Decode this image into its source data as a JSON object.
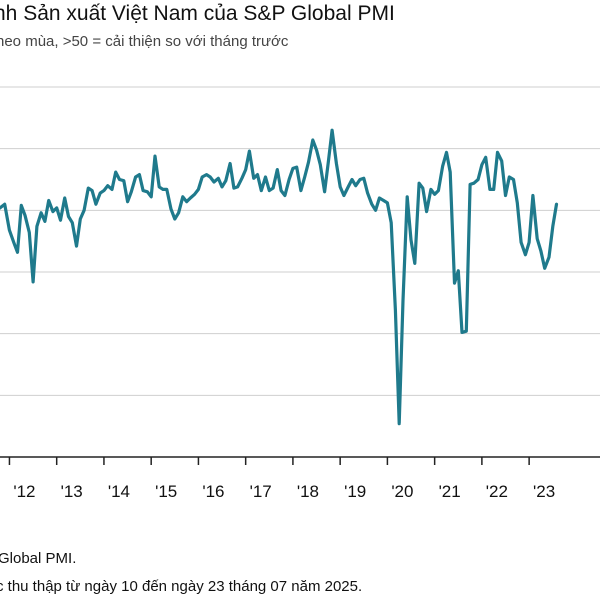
{
  "title": "nh Sản xuất Việt Nam của S&P Global PMI",
  "subtitle": "heo mùa, >50 = cải thiện so với tháng trước",
  "source_line1": "Global PMI.",
  "source_line2": "c thu thập từ ngày 10 đến ngày 23 tháng 07 năm 2025.",
  "colors": {
    "line": "#1f7a8c",
    "grid": "#cfcfcf",
    "axis": "#222222"
  },
  "chart_data": {
    "type": "line",
    "title": "nh Sản xuất Việt Nam của S&P Global PMI",
    "subtitle": "heo mùa, >50 = cải thiện so với tháng trước",
    "xlabel": "",
    "ylabel": "",
    "xlim": [
      2011.8,
      2024.5
    ],
    "ylim": [
      30,
      60
    ],
    "grid": true,
    "x_tick_labels": [
      "'12",
      "'13",
      "'14",
      "'15",
      "'16",
      "'17",
      "'18",
      "'19",
      "'20",
      "'21",
      "'22",
      "'23"
    ],
    "x_ticks": [
      2012,
      2013,
      2014,
      2015,
      2016,
      2017,
      2018,
      2019,
      2020,
      2021,
      2022,
      2023
    ],
    "y_gridlines": [
      35,
      40,
      45,
      50,
      55,
      60
    ],
    "series": [
      {
        "values": [
          [
            2011.8,
            50.2
          ],
          [
            2011.9,
            50.5
          ],
          [
            2012.0,
            48.4
          ],
          [
            2012.1,
            47.3
          ],
          [
            2012.17,
            46.6
          ],
          [
            2012.25,
            50.4
          ],
          [
            2012.33,
            49.6
          ],
          [
            2012.42,
            48.2
          ],
          [
            2012.5,
            44.2
          ],
          [
            2012.58,
            48.7
          ],
          [
            2012.67,
            49.8
          ],
          [
            2012.75,
            49.1
          ],
          [
            2012.83,
            50.8
          ],
          [
            2012.92,
            49.9
          ],
          [
            2013.0,
            50.2
          ],
          [
            2013.08,
            49.2
          ],
          [
            2013.17,
            51.0
          ],
          [
            2013.25,
            49.5
          ],
          [
            2013.33,
            49.0
          ],
          [
            2013.42,
            47.1
          ],
          [
            2013.5,
            49.3
          ],
          [
            2013.58,
            50.0
          ],
          [
            2013.67,
            51.8
          ],
          [
            2013.75,
            51.6
          ],
          [
            2013.83,
            50.5
          ],
          [
            2013.92,
            51.4
          ],
          [
            2014.0,
            51.6
          ],
          [
            2014.08,
            52.0
          ],
          [
            2014.17,
            51.7
          ],
          [
            2014.25,
            53.1
          ],
          [
            2014.33,
            52.5
          ],
          [
            2014.42,
            52.4
          ],
          [
            2014.5,
            50.7
          ],
          [
            2014.58,
            51.5
          ],
          [
            2014.67,
            52.7
          ],
          [
            2014.75,
            52.9
          ],
          [
            2014.83,
            51.6
          ],
          [
            2014.92,
            51.5
          ],
          [
            2015.0,
            51.1
          ],
          [
            2015.08,
            54.4
          ],
          [
            2015.17,
            51.9
          ],
          [
            2015.25,
            51.7
          ],
          [
            2015.33,
            51.7
          ],
          [
            2015.42,
            50.1
          ],
          [
            2015.5,
            49.3
          ],
          [
            2015.58,
            49.8
          ],
          [
            2015.67,
            51.1
          ],
          [
            2015.75,
            50.7
          ],
          [
            2015.83,
            51.0
          ],
          [
            2015.92,
            51.3
          ],
          [
            2016.0,
            51.7
          ],
          [
            2016.08,
            52.7
          ],
          [
            2016.17,
            52.9
          ],
          [
            2016.25,
            52.7
          ],
          [
            2016.33,
            52.3
          ],
          [
            2016.42,
            52.6
          ],
          [
            2016.5,
            51.9
          ],
          [
            2016.58,
            52.4
          ],
          [
            2016.67,
            53.8
          ],
          [
            2016.75,
            51.8
          ],
          [
            2016.83,
            51.9
          ],
          [
            2016.92,
            52.6
          ],
          [
            2017.0,
            53.3
          ],
          [
            2017.08,
            54.8
          ],
          [
            2017.17,
            52.6
          ],
          [
            2017.25,
            52.9
          ],
          [
            2017.33,
            51.6
          ],
          [
            2017.42,
            52.7
          ],
          [
            2017.5,
            51.6
          ],
          [
            2017.58,
            51.8
          ],
          [
            2017.67,
            53.3
          ],
          [
            2017.75,
            51.6
          ],
          [
            2017.83,
            51.2
          ],
          [
            2017.92,
            52.5
          ],
          [
            2018.0,
            53.4
          ],
          [
            2018.08,
            53.5
          ],
          [
            2018.17,
            51.6
          ],
          [
            2018.25,
            52.7
          ],
          [
            2018.33,
            53.9
          ],
          [
            2018.42,
            55.7
          ],
          [
            2018.5,
            54.9
          ],
          [
            2018.58,
            53.7
          ],
          [
            2018.67,
            51.5
          ],
          [
            2018.75,
            53.9
          ],
          [
            2018.83,
            56.5
          ],
          [
            2018.92,
            53.8
          ],
          [
            2019.0,
            51.9
          ],
          [
            2019.08,
            51.2
          ],
          [
            2019.17,
            51.9
          ],
          [
            2019.25,
            52.5
          ],
          [
            2019.33,
            52.0
          ],
          [
            2019.42,
            52.5
          ],
          [
            2019.5,
            52.6
          ],
          [
            2019.58,
            51.4
          ],
          [
            2019.67,
            50.5
          ],
          [
            2019.75,
            50.0
          ],
          [
            2019.83,
            51.0
          ],
          [
            2019.92,
            50.8
          ],
          [
            2020.0,
            50.6
          ],
          [
            2020.08,
            49.0
          ],
          [
            2020.17,
            41.9
          ],
          [
            2020.25,
            32.7
          ],
          [
            2020.33,
            42.7
          ],
          [
            2020.42,
            51.1
          ],
          [
            2020.5,
            47.6
          ],
          [
            2020.58,
            45.7
          ],
          [
            2020.67,
            52.2
          ],
          [
            2020.75,
            51.8
          ],
          [
            2020.83,
            49.9
          ],
          [
            2020.92,
            51.7
          ],
          [
            2021.0,
            51.3
          ],
          [
            2021.08,
            51.6
          ],
          [
            2021.17,
            53.6
          ],
          [
            2021.25,
            54.7
          ],
          [
            2021.33,
            53.1
          ],
          [
            2021.42,
            44.1
          ],
          [
            2021.5,
            45.1
          ],
          [
            2021.58,
            40.1
          ],
          [
            2021.67,
            40.2
          ],
          [
            2021.75,
            52.1
          ],
          [
            2021.83,
            52.2
          ],
          [
            2021.92,
            52.5
          ],
          [
            2022.0,
            53.7
          ],
          [
            2022.08,
            54.3
          ],
          [
            2022.17,
            51.7
          ],
          [
            2022.25,
            51.7
          ],
          [
            2022.33,
            54.7
          ],
          [
            2022.42,
            54.0
          ],
          [
            2022.5,
            51.2
          ],
          [
            2022.58,
            52.7
          ],
          [
            2022.67,
            52.5
          ],
          [
            2022.75,
            50.6
          ],
          [
            2022.83,
            47.4
          ],
          [
            2022.92,
            46.4
          ],
          [
            2023.0,
            47.4
          ],
          [
            2023.08,
            51.2
          ],
          [
            2023.17,
            47.7
          ],
          [
            2023.25,
            46.7
          ],
          [
            2023.33,
            45.3
          ],
          [
            2023.42,
            46.2
          ],
          [
            2023.5,
            48.7
          ],
          [
            2023.58,
            50.5
          ]
        ]
      }
    ]
  }
}
